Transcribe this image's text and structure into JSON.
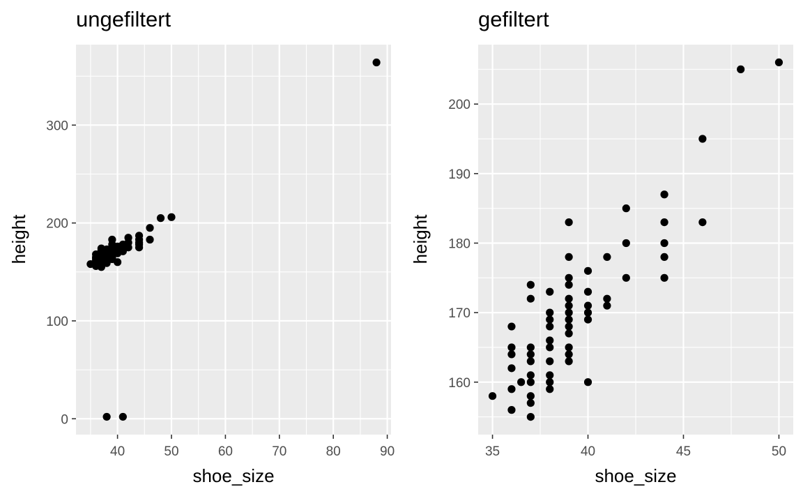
{
  "chart_data": [
    {
      "type": "scatter",
      "title": "ungefiltert",
      "xlabel": "shoe_size",
      "ylabel": "height",
      "xlim": [
        32.3,
        90.7
      ],
      "ylim": [
        -16.2,
        382.2
      ],
      "x_ticks": [
        40,
        50,
        60,
        70,
        80,
        90
      ],
      "y_ticks": [
        0,
        100,
        200,
        300
      ],
      "grid": true,
      "points": [
        {
          "x": 88,
          "y": 364
        },
        {
          "x": 38,
          "y": 2
        },
        {
          "x": 41,
          "y": 2
        },
        {
          "x": 35,
          "y": 158
        },
        {
          "x": 36,
          "y": 156
        },
        {
          "x": 36,
          "y": 159
        },
        {
          "x": 36,
          "y": 162
        },
        {
          "x": 36,
          "y": 164
        },
        {
          "x": 36,
          "y": 165
        },
        {
          "x": 36,
          "y": 168
        },
        {
          "x": 36.5,
          "y": 160
        },
        {
          "x": 37,
          "y": 155
        },
        {
          "x": 37,
          "y": 157
        },
        {
          "x": 37,
          "y": 158
        },
        {
          "x": 37,
          "y": 160
        },
        {
          "x": 37,
          "y": 161
        },
        {
          "x": 37,
          "y": 163
        },
        {
          "x": 37,
          "y": 164
        },
        {
          "x": 37,
          "y": 165
        },
        {
          "x": 37,
          "y": 172
        },
        {
          "x": 37,
          "y": 174
        },
        {
          "x": 38,
          "y": 159
        },
        {
          "x": 38,
          "y": 160
        },
        {
          "x": 38,
          "y": 161
        },
        {
          "x": 38,
          "y": 163
        },
        {
          "x": 38,
          "y": 165
        },
        {
          "x": 38,
          "y": 166
        },
        {
          "x": 38,
          "y": 168
        },
        {
          "x": 38,
          "y": 169
        },
        {
          "x": 38,
          "y": 170
        },
        {
          "x": 38,
          "y": 173
        },
        {
          "x": 39,
          "y": 163
        },
        {
          "x": 39,
          "y": 164
        },
        {
          "x": 39,
          "y": 165
        },
        {
          "x": 39,
          "y": 167
        },
        {
          "x": 39,
          "y": 168
        },
        {
          "x": 39,
          "y": 169
        },
        {
          "x": 39,
          "y": 170
        },
        {
          "x": 39,
          "y": 171
        },
        {
          "x": 39,
          "y": 172
        },
        {
          "x": 39,
          "y": 174
        },
        {
          "x": 39,
          "y": 175
        },
        {
          "x": 39,
          "y": 178
        },
        {
          "x": 39,
          "y": 183
        },
        {
          "x": 40,
          "y": 160
        },
        {
          "x": 40,
          "y": 169
        },
        {
          "x": 40,
          "y": 170
        },
        {
          "x": 40,
          "y": 171
        },
        {
          "x": 40,
          "y": 173
        },
        {
          "x": 40,
          "y": 176
        },
        {
          "x": 41,
          "y": 171
        },
        {
          "x": 41,
          "y": 172
        },
        {
          "x": 41,
          "y": 178
        },
        {
          "x": 42,
          "y": 175
        },
        {
          "x": 42,
          "y": 180
        },
        {
          "x": 42,
          "y": 185
        },
        {
          "x": 44,
          "y": 175
        },
        {
          "x": 44,
          "y": 178
        },
        {
          "x": 44,
          "y": 180
        },
        {
          "x": 44,
          "y": 183
        },
        {
          "x": 44,
          "y": 187
        },
        {
          "x": 46,
          "y": 183
        },
        {
          "x": 46,
          "y": 195
        },
        {
          "x": 48,
          "y": 205
        },
        {
          "x": 50,
          "y": 206
        }
      ]
    },
    {
      "type": "scatter",
      "title": "gefiltert",
      "xlabel": "shoe_size",
      "ylabel": "height",
      "xlim": [
        34.25,
        50.75
      ],
      "ylim": [
        152.45,
        208.55
      ],
      "x_ticks": [
        35,
        40,
        45,
        50
      ],
      "y_ticks": [
        160,
        170,
        180,
        190,
        200
      ],
      "grid": true,
      "points": [
        {
          "x": 35,
          "y": 158
        },
        {
          "x": 36,
          "y": 156
        },
        {
          "x": 36,
          "y": 159
        },
        {
          "x": 36,
          "y": 162
        },
        {
          "x": 36,
          "y": 164
        },
        {
          "x": 36,
          "y": 165
        },
        {
          "x": 36,
          "y": 168
        },
        {
          "x": 36.5,
          "y": 160
        },
        {
          "x": 37,
          "y": 155
        },
        {
          "x": 37,
          "y": 157
        },
        {
          "x": 37,
          "y": 158
        },
        {
          "x": 37,
          "y": 160
        },
        {
          "x": 37,
          "y": 161
        },
        {
          "x": 37,
          "y": 163
        },
        {
          "x": 37,
          "y": 164
        },
        {
          "x": 37,
          "y": 165
        },
        {
          "x": 37,
          "y": 172
        },
        {
          "x": 37,
          "y": 174
        },
        {
          "x": 38,
          "y": 159
        },
        {
          "x": 38,
          "y": 160
        },
        {
          "x": 38,
          "y": 161
        },
        {
          "x": 38,
          "y": 163
        },
        {
          "x": 38,
          "y": 165
        },
        {
          "x": 38,
          "y": 166
        },
        {
          "x": 38,
          "y": 168
        },
        {
          "x": 38,
          "y": 169
        },
        {
          "x": 38,
          "y": 170
        },
        {
          "x": 38,
          "y": 173
        },
        {
          "x": 39,
          "y": 163
        },
        {
          "x": 39,
          "y": 164
        },
        {
          "x": 39,
          "y": 165
        },
        {
          "x": 39,
          "y": 167
        },
        {
          "x": 39,
          "y": 168
        },
        {
          "x": 39,
          "y": 169
        },
        {
          "x": 39,
          "y": 170
        },
        {
          "x": 39,
          "y": 171
        },
        {
          "x": 39,
          "y": 172
        },
        {
          "x": 39,
          "y": 174
        },
        {
          "x": 39,
          "y": 175
        },
        {
          "x": 39,
          "y": 178
        },
        {
          "x": 39,
          "y": 183
        },
        {
          "x": 40,
          "y": 160
        },
        {
          "x": 40,
          "y": 169
        },
        {
          "x": 40,
          "y": 170
        },
        {
          "x": 40,
          "y": 171
        },
        {
          "x": 40,
          "y": 173
        },
        {
          "x": 40,
          "y": 176
        },
        {
          "x": 41,
          "y": 171
        },
        {
          "x": 41,
          "y": 172
        },
        {
          "x": 41,
          "y": 178
        },
        {
          "x": 42,
          "y": 175
        },
        {
          "x": 42,
          "y": 180
        },
        {
          "x": 42,
          "y": 185
        },
        {
          "x": 44,
          "y": 175
        },
        {
          "x": 44,
          "y": 178
        },
        {
          "x": 44,
          "y": 180
        },
        {
          "x": 44,
          "y": 183
        },
        {
          "x": 44,
          "y": 187
        },
        {
          "x": 46,
          "y": 183
        },
        {
          "x": 46,
          "y": 195
        },
        {
          "x": 48,
          "y": 205
        },
        {
          "x": 50,
          "y": 206
        }
      ]
    }
  ]
}
